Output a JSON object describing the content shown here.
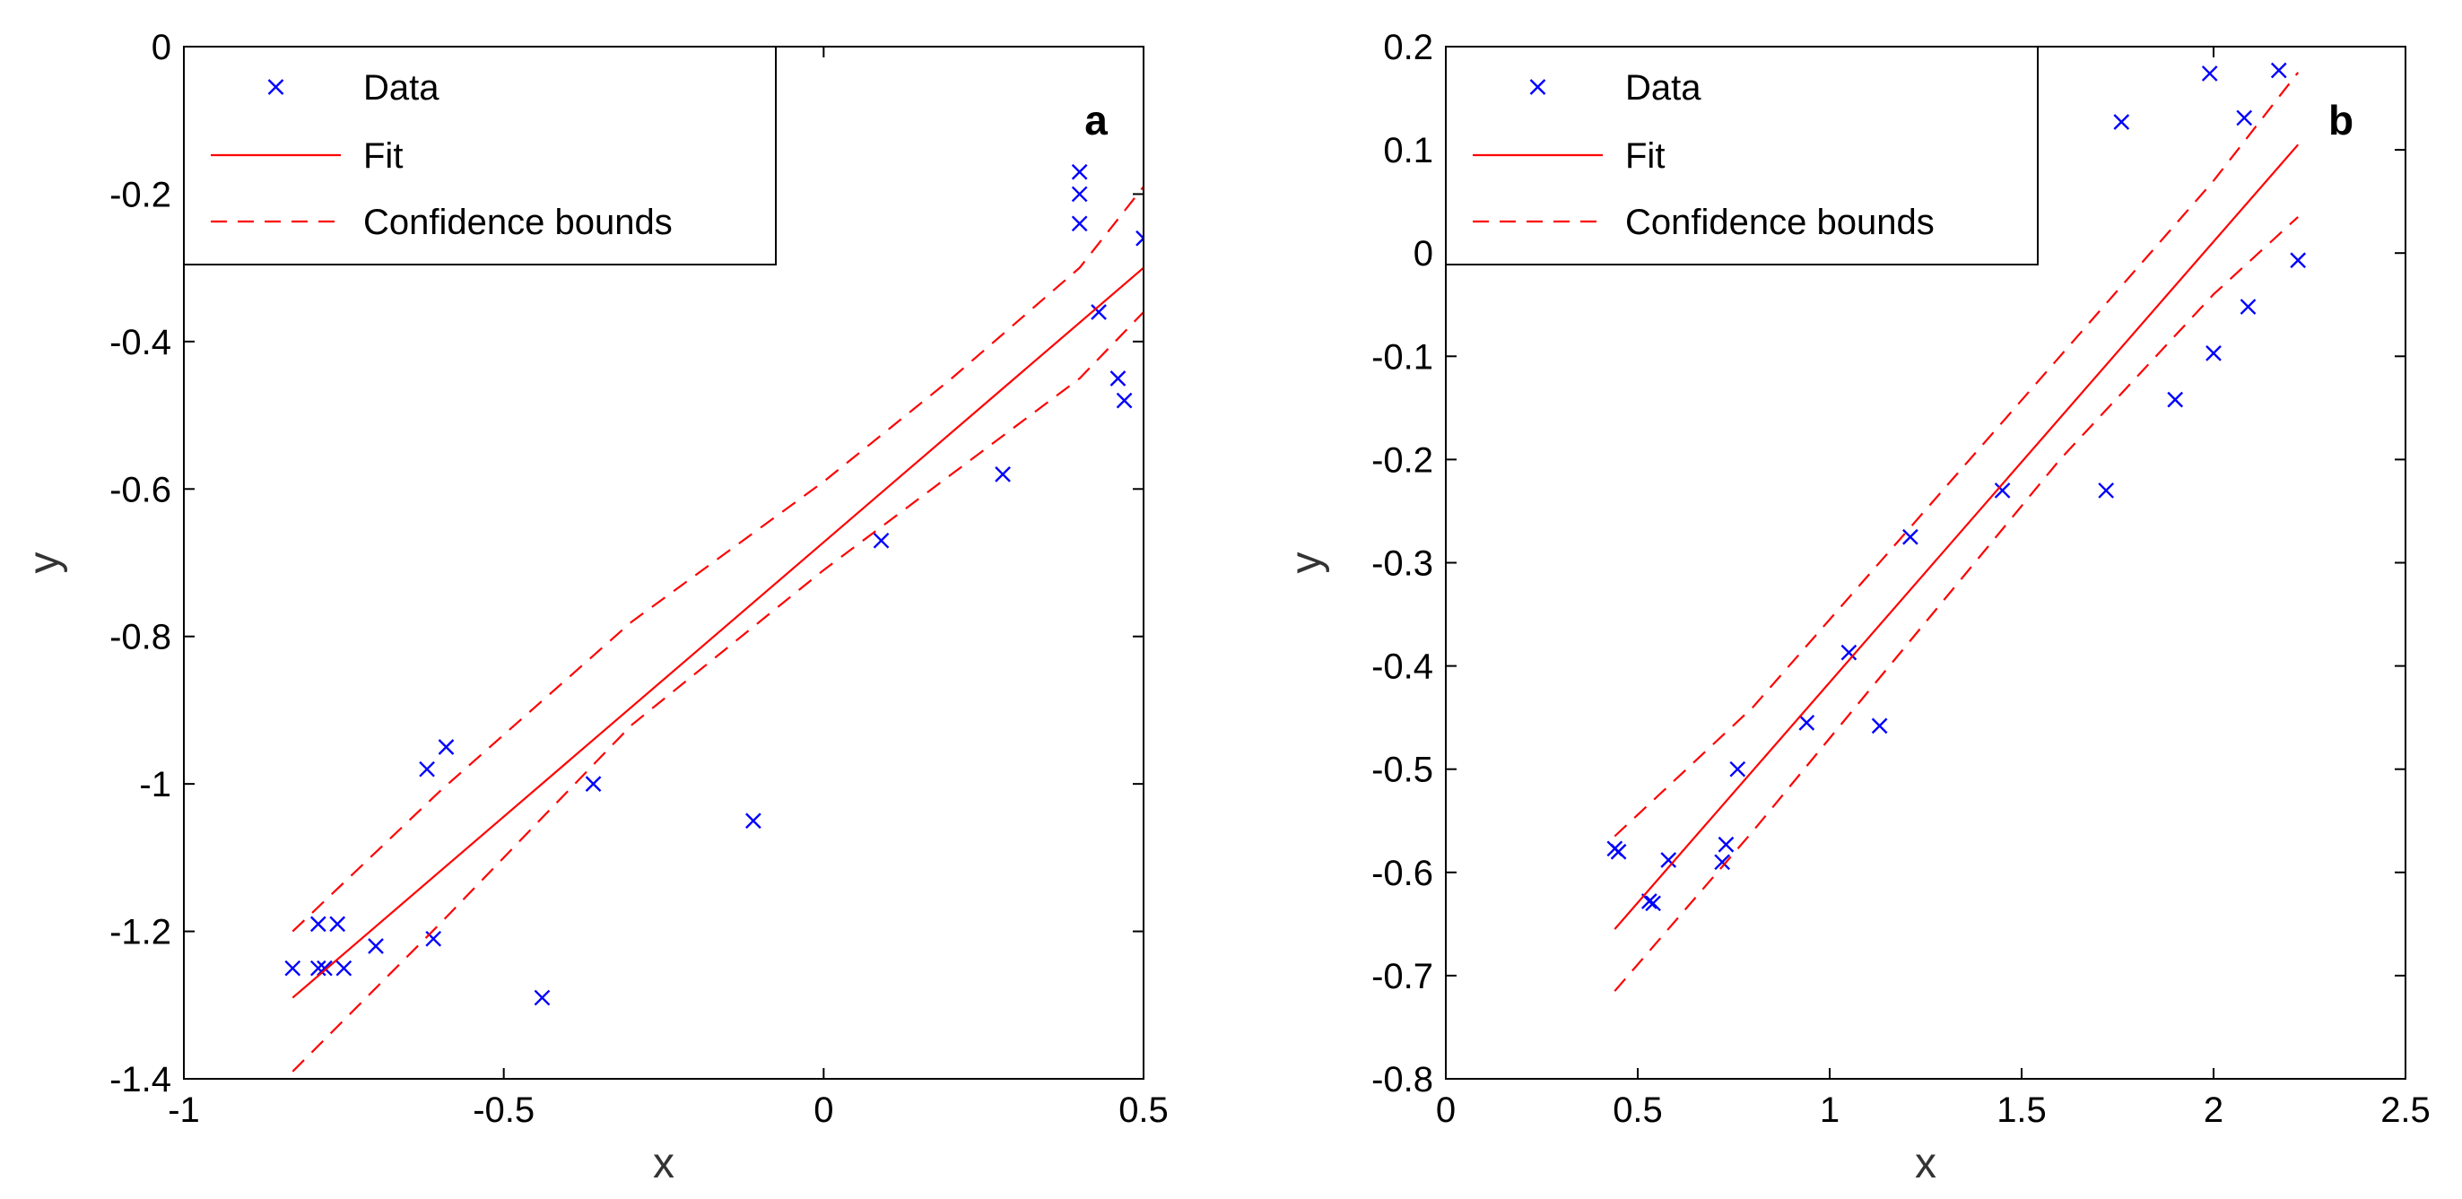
{
  "colors": {
    "data": "#0000ff",
    "fit": "#ff0000",
    "axes": "#000000"
  },
  "chart_data": [
    {
      "type": "scatter",
      "panel_label": "a",
      "xlabel": "x",
      "ylabel": "y",
      "xlim": [
        -1,
        0.5
      ],
      "ylim": [
        -1.4,
        0
      ],
      "xticks": [
        -1,
        -0.5,
        0,
        0.5
      ],
      "xtick_labels": [
        "-1",
        "-0.5",
        "0",
        "0.5"
      ],
      "yticks": [
        -1.4,
        -1.2,
        -1,
        -0.8,
        -0.6,
        -0.4,
        -0.2,
        0
      ],
      "ytick_labels": [
        "-1.4",
        "-1.2",
        "-1",
        "-0.8",
        "-0.6",
        "-0.4",
        "-0.2",
        "0"
      ],
      "legend": {
        "position": "top-left",
        "entries": [
          "Data",
          "Fit",
          "Confidence bounds"
        ]
      },
      "series": [
        {
          "name": "Data",
          "style": "marker-x",
          "points": [
            [
              -0.83,
              -1.25
            ],
            [
              -0.79,
              -1.19
            ],
            [
              -0.79,
              -1.25
            ],
            [
              -0.78,
              -1.25
            ],
            [
              -0.76,
              -1.19
            ],
            [
              -0.75,
              -1.25
            ],
            [
              -0.7,
              -1.22
            ],
            [
              -0.62,
              -0.98
            ],
            [
              -0.61,
              -1.21
            ],
            [
              -0.59,
              -0.95
            ],
            [
              -0.44,
              -1.29
            ],
            [
              -0.36,
              -1.0
            ],
            [
              -0.11,
              -1.05
            ],
            [
              0.09,
              -0.67
            ],
            [
              0.28,
              -0.58
            ],
            [
              0.4,
              -0.17
            ],
            [
              0.4,
              -0.2
            ],
            [
              0.4,
              -0.24
            ],
            [
              0.43,
              -0.36
            ],
            [
              0.46,
              -0.45
            ],
            [
              0.47,
              -0.48
            ],
            [
              0.5,
              -0.26
            ]
          ]
        },
        {
          "name": "Fit",
          "style": "solid",
          "points": [
            [
              -0.83,
              -1.29
            ],
            [
              0.5,
              -0.3
            ]
          ]
        },
        {
          "name": "Confidence bounds",
          "style": "dashed",
          "points": [
            [
              -0.83,
              -1.2
            ],
            [
              -0.6,
              -1.01
            ],
            [
              -0.3,
              -0.78
            ],
            [
              0.0,
              -0.59
            ],
            [
              0.2,
              -0.45
            ],
            [
              0.4,
              -0.3
            ],
            [
              0.5,
              -0.19
            ]
          ]
        },
        {
          "name": "Confidence bounds",
          "style": "dashed",
          "points": [
            [
              -0.83,
              -1.39
            ],
            [
              -0.6,
              -1.19
            ],
            [
              -0.3,
              -0.92
            ],
            [
              0.0,
              -0.71
            ],
            [
              0.2,
              -0.58
            ],
            [
              0.4,
              -0.45
            ],
            [
              0.5,
              -0.36
            ]
          ]
        }
      ]
    },
    {
      "type": "scatter",
      "panel_label": "b",
      "xlabel": "x",
      "ylabel": "y",
      "xlim": [
        0,
        2.5
      ],
      "ylim": [
        -0.8,
        0.2
      ],
      "xticks": [
        0,
        0.5,
        1,
        1.5,
        2,
        2.5
      ],
      "xtick_labels": [
        "0",
        "0.5",
        "1",
        "1.5",
        "2",
        "2.5"
      ],
      "yticks": [
        -0.8,
        -0.7,
        -0.6,
        -0.5,
        -0.4,
        -0.3,
        -0.2,
        -0.1,
        0,
        0.1,
        0.2
      ],
      "ytick_labels": [
        "-0.8",
        "-0.7",
        "-0.6",
        "-0.5",
        "-0.4",
        "-0.3",
        "-0.2",
        "-0.1",
        "0",
        "0.1",
        "0.2"
      ],
      "legend": {
        "position": "top-left",
        "entries": [
          "Data",
          "Fit",
          "Confidence bounds"
        ]
      },
      "series": [
        {
          "name": "Data",
          "style": "marker-x",
          "points": [
            [
              0.44,
              -0.577
            ],
            [
              0.45,
              -0.58
            ],
            [
              0.53,
              -0.628
            ],
            [
              0.54,
              -0.63
            ],
            [
              0.58,
              -0.588
            ],
            [
              0.72,
              -0.59
            ],
            [
              0.73,
              -0.573
            ],
            [
              0.76,
              -0.5
            ],
            [
              0.94,
              -0.455
            ],
            [
              1.05,
              -0.387
            ],
            [
              1.13,
              -0.458
            ],
            [
              1.21,
              -0.275
            ],
            [
              1.45,
              -0.23
            ],
            [
              1.72,
              -0.23
            ],
            [
              1.76,
              0.127
            ],
            [
              1.9,
              -0.142
            ],
            [
              1.99,
              0.174
            ],
            [
              2.0,
              -0.097
            ],
            [
              2.08,
              0.131
            ],
            [
              2.09,
              -0.052
            ],
            [
              2.17,
              0.177
            ],
            [
              2.22,
              -0.007
            ]
          ]
        },
        {
          "name": "Fit",
          "style": "solid",
          "points": [
            [
              0.44,
              -0.655
            ],
            [
              2.22,
              0.105
            ]
          ]
        },
        {
          "name": "Confidence bounds",
          "style": "dashed",
          "points": [
            [
              0.44,
              -0.565
            ],
            [
              0.8,
              -0.44
            ],
            [
              1.2,
              -0.27
            ],
            [
              1.6,
              -0.1
            ],
            [
              2.0,
              0.07
            ],
            [
              2.22,
              0.175
            ]
          ]
        },
        {
          "name": "Confidence bounds",
          "style": "dashed",
          "points": [
            [
              0.44,
              -0.715
            ],
            [
              0.8,
              -0.56
            ],
            [
              1.2,
              -0.38
            ],
            [
              1.6,
              -0.2
            ],
            [
              2.0,
              -0.04
            ],
            [
              2.22,
              0.035
            ]
          ]
        }
      ]
    }
  ]
}
